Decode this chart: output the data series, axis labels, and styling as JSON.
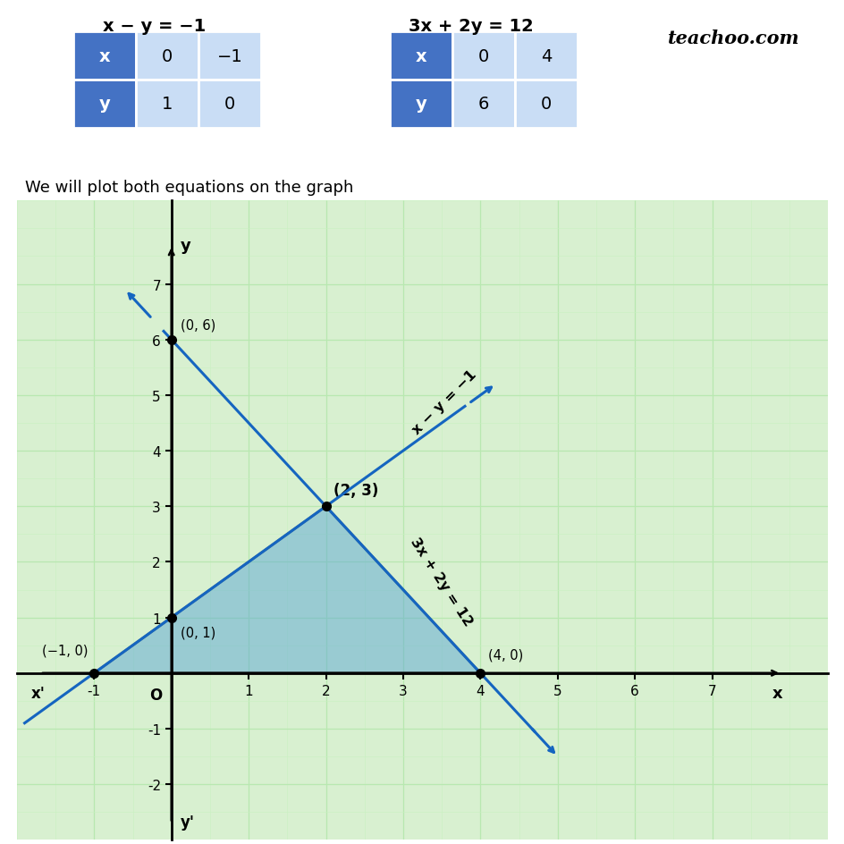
{
  "title1": "x − y = −1",
  "title2": "3x + 2y = 12",
  "watermark": "teachoo.com",
  "table1": {
    "headers": [
      "x",
      "0",
      "−1"
    ],
    "row2": [
      "y",
      "1",
      "0"
    ]
  },
  "table2": {
    "headers": [
      "x",
      "0",
      "4"
    ],
    "row2": [
      "y",
      "6",
      "0"
    ]
  },
  "subtitle": "We will plot both equations on the graph",
  "graph": {
    "xlim": [
      -1.8,
      8.0
    ],
    "ylim": [
      -2.8,
      7.8
    ],
    "xticks": [
      -1,
      0,
      1,
      2,
      3,
      4,
      5,
      6,
      7
    ],
    "yticks": [
      -2,
      -1,
      0,
      1,
      2,
      3,
      4,
      5,
      6,
      7
    ],
    "grid_color": "#b8e8b0",
    "minor_grid_color": "#c8f0c0",
    "bg_color": "#d8f0d0",
    "line_color": "#1565c0",
    "triangle_color": "#5ba8d4",
    "triangle_alpha": 0.5
  },
  "header_color": "#4472c4",
  "cell_color": "#c9ddf5",
  "header_text_color": "#ffffff",
  "cell_text_color": "#000000"
}
